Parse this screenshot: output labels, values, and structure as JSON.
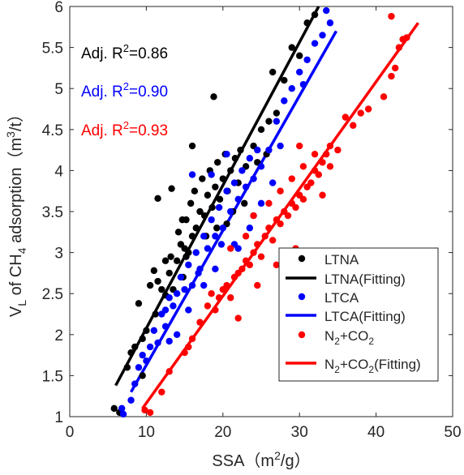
{
  "chart_data": {
    "type": "scatter",
    "xlabel": "SSA（m²/g）",
    "xlabel_parts": {
      "main": "SSA（m",
      "sup": "2",
      "end": "/g）"
    },
    "ylabel_parts": {
      "v": "V",
      "sub_l": "L",
      "mid": " of CH",
      "sub_4": "4",
      "rest": " adsorption（m",
      "sup": "3",
      "end": "/t）"
    },
    "xlim": [
      0,
      50
    ],
    "ylim": [
      1,
      6
    ],
    "xticks": [
      0,
      10,
      20,
      30,
      40,
      50
    ],
    "yticks": [
      1,
      1.5,
      2,
      2.5,
      3,
      3.5,
      4,
      4.5,
      5,
      5.5,
      6
    ],
    "ytick_labels": [
      "1",
      "1.5",
      "2",
      "2.5",
      "3",
      "3.5",
      "4",
      "4.5",
      "5",
      "5.5",
      "6"
    ],
    "grid": false,
    "legend_position": "lower-right",
    "annotations": [
      {
        "prefix": "Adj. R",
        "sup": "2",
        "suffix": "=0.86",
        "color": "#000000"
      },
      {
        "prefix": "Adj. R",
        "sup": "2",
        "suffix": "=0.90",
        "color": "#0000ff"
      },
      {
        "prefix": "Adj. R",
        "sup": "2",
        "suffix": "=0.93",
        "color": "#ff0000"
      }
    ],
    "series": [
      {
        "name": "LTNA",
        "fit_name": "LTNA(Fitting)",
        "color": "#000000",
        "fit": {
          "x1": 6,
          "y1": 1.38,
          "x2": 32.5,
          "y2": 6.0
        },
        "points": [
          [
            5.8,
            1.1
          ],
          [
            6.5,
            1.05
          ],
          [
            7.5,
            1.6
          ],
          [
            8.0,
            1.78
          ],
          [
            8.5,
            1.85
          ],
          [
            9.0,
            2.38
          ],
          [
            9.5,
            1.95
          ],
          [
            10.0,
            2.05
          ],
          [
            10.5,
            2.6
          ],
          [
            11.0,
            2.78
          ],
          [
            11.2,
            2.25
          ],
          [
            11.5,
            2.65
          ],
          [
            12.0,
            2.55
          ],
          [
            12.5,
            2.48
          ],
          [
            13.0,
            2.75
          ],
          [
            13.2,
            2.95
          ],
          [
            13.5,
            2.55
          ],
          [
            14.0,
            2.9
          ],
          [
            14.2,
            3.25
          ],
          [
            14.5,
            3.1
          ],
          [
            14.8,
            2.7
          ],
          [
            15.0,
            3.05
          ],
          [
            15.2,
            3.4
          ],
          [
            15.5,
            3.0
          ],
          [
            15.8,
            3.6
          ],
          [
            16.0,
            3.2
          ],
          [
            16.3,
            3.75
          ],
          [
            16.5,
            3.3
          ],
          [
            17.0,
            3.5
          ],
          [
            17.3,
            3.9
          ],
          [
            17.6,
            3.45
          ],
          [
            18.0,
            3.7
          ],
          [
            18.3,
            4.0
          ],
          [
            18.6,
            3.55
          ],
          [
            19.0,
            3.8
          ],
          [
            19.3,
            4.1
          ],
          [
            19.6,
            3.65
          ],
          [
            20.0,
            3.9
          ],
          [
            20.3,
            4.2
          ],
          [
            20.6,
            3.75
          ],
          [
            21.0,
            4.0
          ],
          [
            21.3,
            3.5
          ],
          [
            21.6,
            4.15
          ],
          [
            22.0,
            3.85
          ],
          [
            22.3,
            4.25
          ],
          [
            23.0,
            4.05
          ],
          [
            24.0,
            4.3
          ],
          [
            25.0,
            4.5
          ],
          [
            26.0,
            4.6
          ],
          [
            27.0,
            4.7
          ],
          [
            28.0,
            5.1
          ],
          [
            29.0,
            5.5
          ],
          [
            30.0,
            5.4
          ],
          [
            31.0,
            5.8
          ],
          [
            32.0,
            5.9
          ],
          [
            11.5,
            3.66
          ],
          [
            13.3,
            3.78
          ],
          [
            16.0,
            4.3
          ],
          [
            18.8,
            4.9
          ],
          [
            26.5,
            5.2
          ],
          [
            9.5,
            1.5
          ],
          [
            12.5,
            2.9
          ],
          [
            14.7,
            3.4
          ],
          [
            17.8,
            3.2
          ],
          [
            20.5,
            3.35
          ],
          [
            22.8,
            3.6
          ],
          [
            24.5,
            4.1
          ],
          [
            25.7,
            4.2
          ],
          [
            19.2,
            3.3
          ],
          [
            15.2,
            2.95
          ]
        ]
      },
      {
        "name": "LTCA",
        "fit_name": "LTCA(Fitting)",
        "color": "#0000ff",
        "fit": {
          "x1": 8,
          "y1": 1.3,
          "x2": 34.8,
          "y2": 5.7
        },
        "points": [
          [
            6.8,
            1.1
          ],
          [
            7.0,
            1.03
          ],
          [
            8.0,
            1.2
          ],
          [
            8.5,
            1.4
          ],
          [
            9.0,
            1.6
          ],
          [
            9.5,
            1.75
          ],
          [
            10.0,
            1.68
          ],
          [
            10.5,
            1.85
          ],
          [
            11.0,
            2.05
          ],
          [
            11.5,
            1.9
          ],
          [
            12.0,
            2.25
          ],
          [
            12.5,
            2.1
          ],
          [
            13.0,
            2.45
          ],
          [
            13.5,
            2.35
          ],
          [
            14.0,
            2.5
          ],
          [
            14.5,
            2.7
          ],
          [
            15.0,
            2.55
          ],
          [
            15.5,
            2.85
          ],
          [
            16.0,
            2.6
          ],
          [
            16.5,
            3.0
          ],
          [
            17.0,
            2.8
          ],
          [
            17.5,
            3.2
          ],
          [
            18.0,
            3.05
          ],
          [
            18.5,
            3.4
          ],
          [
            19.0,
            3.2
          ],
          [
            19.5,
            3.55
          ],
          [
            20.0,
            3.3
          ],
          [
            20.5,
            3.75
          ],
          [
            21.0,
            3.5
          ],
          [
            21.5,
            3.85
          ],
          [
            22.0,
            3.65
          ],
          [
            22.5,
            4.0
          ],
          [
            23.0,
            3.8
          ],
          [
            23.5,
            4.15
          ],
          [
            24.0,
            3.9
          ],
          [
            24.5,
            4.25
          ],
          [
            25.0,
            4.05
          ],
          [
            26.0,
            4.25
          ],
          [
            27.0,
            4.6
          ],
          [
            28.0,
            4.85
          ],
          [
            29.0,
            5.0
          ],
          [
            30.0,
            5.2
          ],
          [
            31.0,
            5.35
          ],
          [
            32.0,
            5.55
          ],
          [
            33.0,
            5.65
          ],
          [
            33.5,
            5.95
          ],
          [
            34.0,
            5.8
          ],
          [
            16.0,
            3.95
          ],
          [
            18.5,
            3.95
          ],
          [
            20.5,
            4.2
          ],
          [
            12.5,
            2.3
          ],
          [
            14.0,
            2.0
          ],
          [
            15.5,
            2.3
          ],
          [
            17.5,
            2.6
          ],
          [
            19.0,
            2.8
          ],
          [
            21.5,
            3.1
          ],
          [
            23.5,
            3.3
          ],
          [
            25.0,
            3.6
          ],
          [
            26.5,
            3.85
          ],
          [
            22.0,
            3.05
          ],
          [
            24.0,
            3.45
          ],
          [
            27.5,
            4.3
          ],
          [
            30.5,
            5.05
          ],
          [
            13.0,
            1.92
          ],
          [
            16.8,
            2.75
          ],
          [
            19.8,
            3.1
          ]
        ]
      },
      {
        "name": "N₂+CO₂",
        "fit_name": "N₂+CO₂(Fitting)",
        "legend_parts": {
          "a": "N",
          "s1": "2",
          "b": "+CO",
          "s2": "2",
          "c": ""
        },
        "fit_legend_parts": {
          "a": "N",
          "s1": "2",
          "b": "+CO",
          "s2": "2",
          "c": "(Fitting)"
        },
        "color": "#ff0000",
        "fit": {
          "x1": 9.5,
          "y1": 1.1,
          "x2": 45.5,
          "y2": 5.8
        },
        "points": [
          [
            9.8,
            1.08
          ],
          [
            10.5,
            1.05
          ],
          [
            12.0,
            1.3
          ],
          [
            13.0,
            1.55
          ],
          [
            15.0,
            1.78
          ],
          [
            15.5,
            1.85
          ],
          [
            16.0,
            1.95
          ],
          [
            17.0,
            2.15
          ],
          [
            18.0,
            2.35
          ],
          [
            18.5,
            2.5
          ],
          [
            19.0,
            2.3
          ],
          [
            19.5,
            2.45
          ],
          [
            20.0,
            2.55
          ],
          [
            20.5,
            2.6
          ],
          [
            21.0,
            2.45
          ],
          [
            21.5,
            2.7
          ],
          [
            22.0,
            2.75
          ],
          [
            22.5,
            2.8
          ],
          [
            23.0,
            2.9
          ],
          [
            23.5,
            2.85
          ],
          [
            24.0,
            3.0
          ],
          [
            24.5,
            3.1
          ],
          [
            25.0,
            2.95
          ],
          [
            25.5,
            3.2
          ],
          [
            26.0,
            3.3
          ],
          [
            26.5,
            3.15
          ],
          [
            27.0,
            3.4
          ],
          [
            27.5,
            3.35
          ],
          [
            28.0,
            3.5
          ],
          [
            28.5,
            3.45
          ],
          [
            29.0,
            3.6
          ],
          [
            29.5,
            3.55
          ],
          [
            30.0,
            3.7
          ],
          [
            30.5,
            3.65
          ],
          [
            31.0,
            3.8
          ],
          [
            31.5,
            3.85
          ],
          [
            32.0,
            4.0
          ],
          [
            32.5,
            3.95
          ],
          [
            33.0,
            4.1
          ],
          [
            33.5,
            4.2
          ],
          [
            34.0,
            4.3
          ],
          [
            35.0,
            4.25
          ],
          [
            36.0,
            4.65
          ],
          [
            37.0,
            4.55
          ],
          [
            38.0,
            4.7
          ],
          [
            39.0,
            4.75
          ],
          [
            41.0,
            4.9
          ],
          [
            42.0,
            5.15
          ],
          [
            42.5,
            5.25
          ],
          [
            43.0,
            5.5
          ],
          [
            43.5,
            5.6
          ],
          [
            42.0,
            5.88
          ],
          [
            44.0,
            5.62
          ],
          [
            21.0,
            3.05
          ],
          [
            23.0,
            3.2
          ],
          [
            24.0,
            3.45
          ],
          [
            26.0,
            3.6
          ],
          [
            27.5,
            3.75
          ],
          [
            29.0,
            3.9
          ],
          [
            30.5,
            4.05
          ],
          [
            32.0,
            4.2
          ],
          [
            22.0,
            2.2
          ],
          [
            24.5,
            2.6
          ],
          [
            27.0,
            2.85
          ],
          [
            29.5,
            3.05
          ],
          [
            30.0,
            4.3
          ],
          [
            33.0,
            3.7
          ],
          [
            34.0,
            4.05
          ]
        ]
      }
    ]
  }
}
